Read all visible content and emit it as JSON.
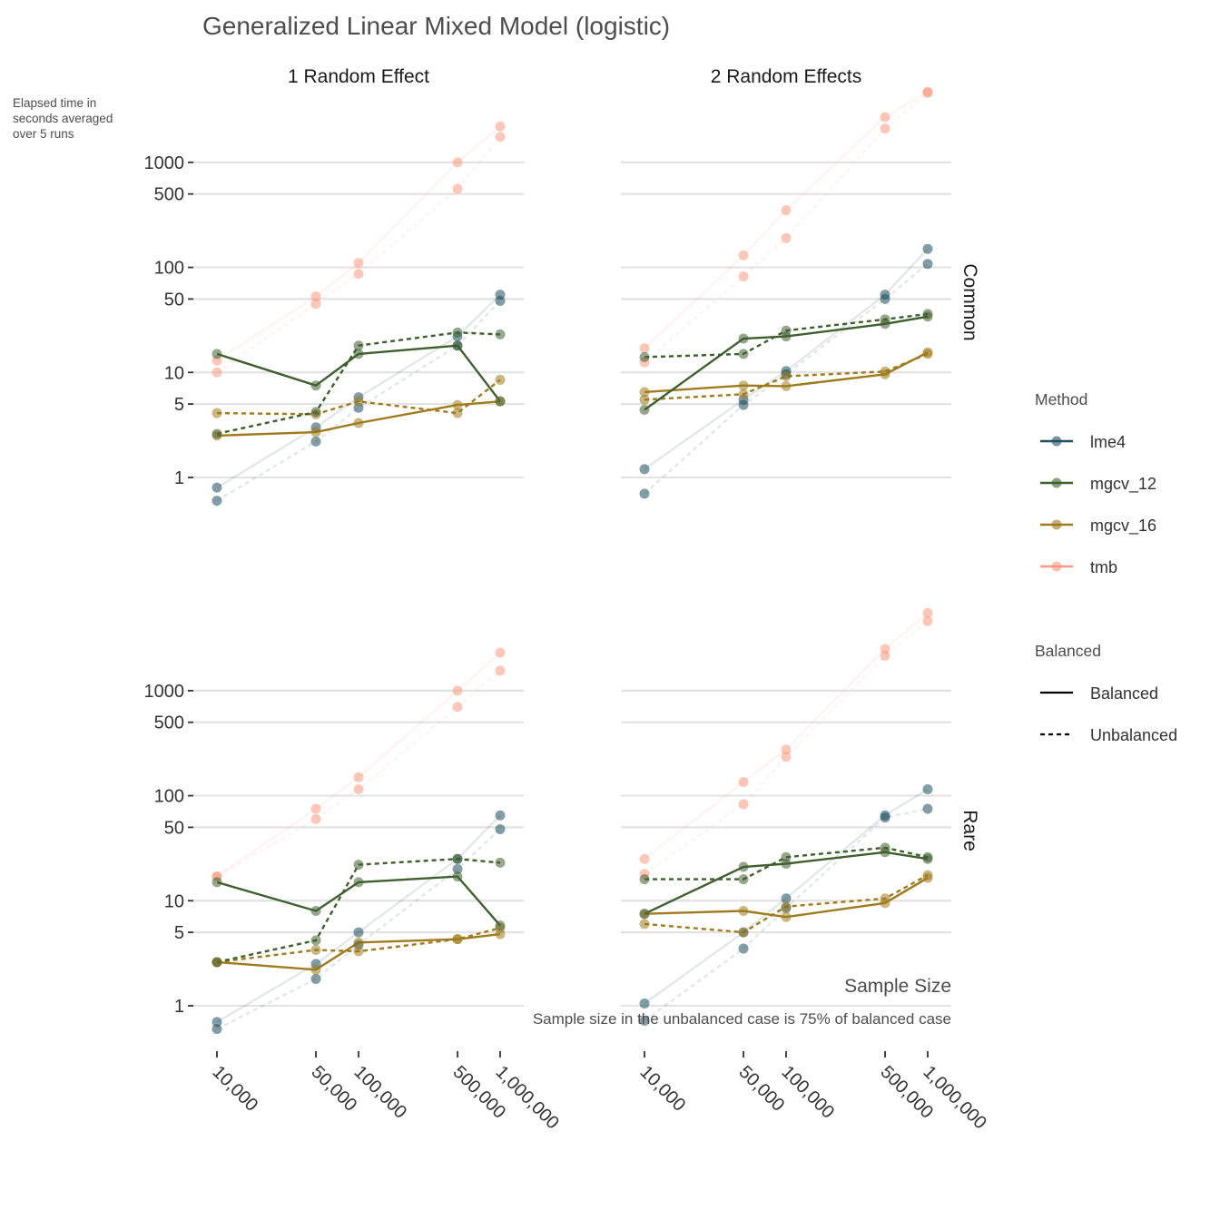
{
  "chart_data": {
    "type": "line",
    "title": "Generalized Linear Mixed Model (logistic)",
    "ylabel_note": [
      "Elapsed time in",
      "seconds averaged",
      "over 5 runs"
    ],
    "xlabel": "Sample Size",
    "caption": "Sample size in the unbalanced case is 75% of balanced case",
    "x_scale": "log",
    "y_scale": "log",
    "x": [
      10000,
      50000,
      100000,
      500000,
      1000000
    ],
    "x_tick_labels": [
      "10,000",
      "50,000",
      "100,000",
      "500,000",
      "1,000,000"
    ],
    "y_ticks": [
      1,
      5,
      10,
      50,
      100,
      500,
      1000
    ],
    "y_tick_labels": [
      "1",
      "5",
      "10",
      "50",
      "100",
      "500",
      "1000"
    ],
    "ylim": [
      0.4,
      5000
    ],
    "col_facets": [
      "1 Random Effect",
      "2 Random Effects"
    ],
    "row_facets": [
      "Common",
      "Rare"
    ],
    "legend_method_title": "Method",
    "legend_balanced_title": "Balanced",
    "methods": [
      {
        "name": "lme4",
        "color": "#1f4e5f"
      },
      {
        "name": "mgcv_12",
        "color": "#3f5f2f"
      },
      {
        "name": "mgcv_16",
        "color": "#a07b1e"
      },
      {
        "name": "tmb",
        "color": "#f79a82"
      }
    ],
    "balance_levels": [
      {
        "name": "Balanced",
        "dash": "solid"
      },
      {
        "name": "Unbalanced",
        "dash": "dashed"
      }
    ],
    "panels": [
      {
        "col": "1 Random Effect",
        "row": "Common",
        "series": [
          {
            "method": "lme4",
            "balanced": "Balanced",
            "values": [
              0.8,
              3.0,
              5.8,
              22,
              55
            ]
          },
          {
            "method": "lme4",
            "balanced": "Unbalanced",
            "values": [
              0.6,
              2.2,
              4.6,
              18,
              48
            ]
          },
          {
            "method": "mgcv_12",
            "balanced": "Balanced",
            "values": [
              15,
              7.5,
              15,
              18,
              5.3
            ]
          },
          {
            "method": "mgcv_12",
            "balanced": "Unbalanced",
            "values": [
              2.6,
              4.2,
              18,
              24,
              23
            ]
          },
          {
            "method": "mgcv_16",
            "balanced": "Balanced",
            "values": [
              2.5,
              2.7,
              3.3,
              4.9,
              5.3
            ]
          },
          {
            "method": "mgcv_16",
            "balanced": "Unbalanced",
            "values": [
              4.1,
              4.0,
              5.3,
              4.1,
              8.5
            ]
          },
          {
            "method": "tmb",
            "balanced": "Balanced",
            "values": [
              13,
              53,
              110,
              1000,
              2200
            ]
          },
          {
            "method": "tmb",
            "balanced": "Unbalanced",
            "values": [
              10,
              45,
              87,
              560,
              1750
            ]
          }
        ]
      },
      {
        "col": "2 Random Effects",
        "row": "Common",
        "series": [
          {
            "method": "lme4",
            "balanced": "Balanced",
            "values": [
              1.2,
              5.5,
              10.3,
              55,
              150
            ]
          },
          {
            "method": "lme4",
            "balanced": "Unbalanced",
            "values": [
              0.7,
              4.9,
              9.6,
              50,
              108
            ]
          },
          {
            "method": "mgcv_12",
            "balanced": "Balanced",
            "values": [
              4.4,
              21,
              22,
              29,
              34
            ]
          },
          {
            "method": "mgcv_12",
            "balanced": "Unbalanced",
            "values": [
              14,
              15,
              25,
              32,
              36
            ]
          },
          {
            "method": "mgcv_16",
            "balanced": "Balanced",
            "values": [
              6.5,
              7.5,
              7.4,
              9.6,
              15.5
            ]
          },
          {
            "method": "mgcv_16",
            "balanced": "Unbalanced",
            "values": [
              5.5,
              6.2,
              9.2,
              10.2,
              15
            ]
          },
          {
            "method": "tmb",
            "balanced": "Balanced",
            "values": [
              17,
              130,
              350,
              2700,
              4700
            ]
          },
          {
            "method": "tmb",
            "balanced": "Unbalanced",
            "values": [
              12.5,
              82,
              190,
              2100,
              4600
            ]
          }
        ]
      },
      {
        "col": "1 Random Effect",
        "row": "Rare",
        "series": [
          {
            "method": "lme4",
            "balanced": "Balanced",
            "values": [
              0.7,
              2.5,
              5.0,
              25,
              65
            ]
          },
          {
            "method": "lme4",
            "balanced": "Unbalanced",
            "values": [
              0.6,
              1.8,
              3.8,
              20,
              48
            ]
          },
          {
            "method": "mgcv_12",
            "balanced": "Balanced",
            "values": [
              15,
              8.0,
              15,
              17,
              5.8
            ]
          },
          {
            "method": "mgcv_12",
            "balanced": "Unbalanced",
            "values": [
              2.6,
              4.2,
              22,
              25,
              23
            ]
          },
          {
            "method": "mgcv_16",
            "balanced": "Balanced",
            "values": [
              2.6,
              2.2,
              4.0,
              4.3,
              4.8
            ]
          },
          {
            "method": "mgcv_16",
            "balanced": "Unbalanced",
            "values": [
              2.6,
              3.4,
              3.3,
              4.3,
              5.5
            ]
          },
          {
            "method": "tmb",
            "balanced": "Balanced",
            "values": [
              17,
              75,
              150,
              1000,
              2300
            ]
          },
          {
            "method": "tmb",
            "balanced": "Unbalanced",
            "values": [
              17,
              60,
              115,
              700,
              1550
            ]
          }
        ]
      },
      {
        "col": "2 Random Effects",
        "row": "Rare",
        "series": [
          {
            "method": "lme4",
            "balanced": "Balanced",
            "values": [
              1.05,
              5.0,
              10.5,
              65,
              115
            ]
          },
          {
            "method": "lme4",
            "balanced": "Unbalanced",
            "values": [
              0.72,
              3.5,
              8.5,
              62,
              75
            ]
          },
          {
            "method": "mgcv_12",
            "balanced": "Balanced",
            "values": [
              7.5,
              21,
              22.5,
              29,
              25
            ]
          },
          {
            "method": "mgcv_12",
            "balanced": "Unbalanced",
            "values": [
              16,
              16,
              26,
              32,
              26
            ]
          },
          {
            "method": "mgcv_16",
            "balanced": "Balanced",
            "values": [
              7.5,
              8.0,
              7.0,
              9.5,
              16.5
            ]
          },
          {
            "method": "mgcv_16",
            "balanced": "Unbalanced",
            "values": [
              6.0,
              5.0,
              8.8,
              10.5,
              17.5
            ]
          },
          {
            "method": "tmb",
            "balanced": "Balanced",
            "values": [
              25,
              135,
              275,
              2500,
              5500
            ]
          },
          {
            "method": "tmb",
            "balanced": "Unbalanced",
            "values": [
              18,
              83,
              235,
              2150,
              4600
            ]
          }
        ]
      }
    ]
  }
}
